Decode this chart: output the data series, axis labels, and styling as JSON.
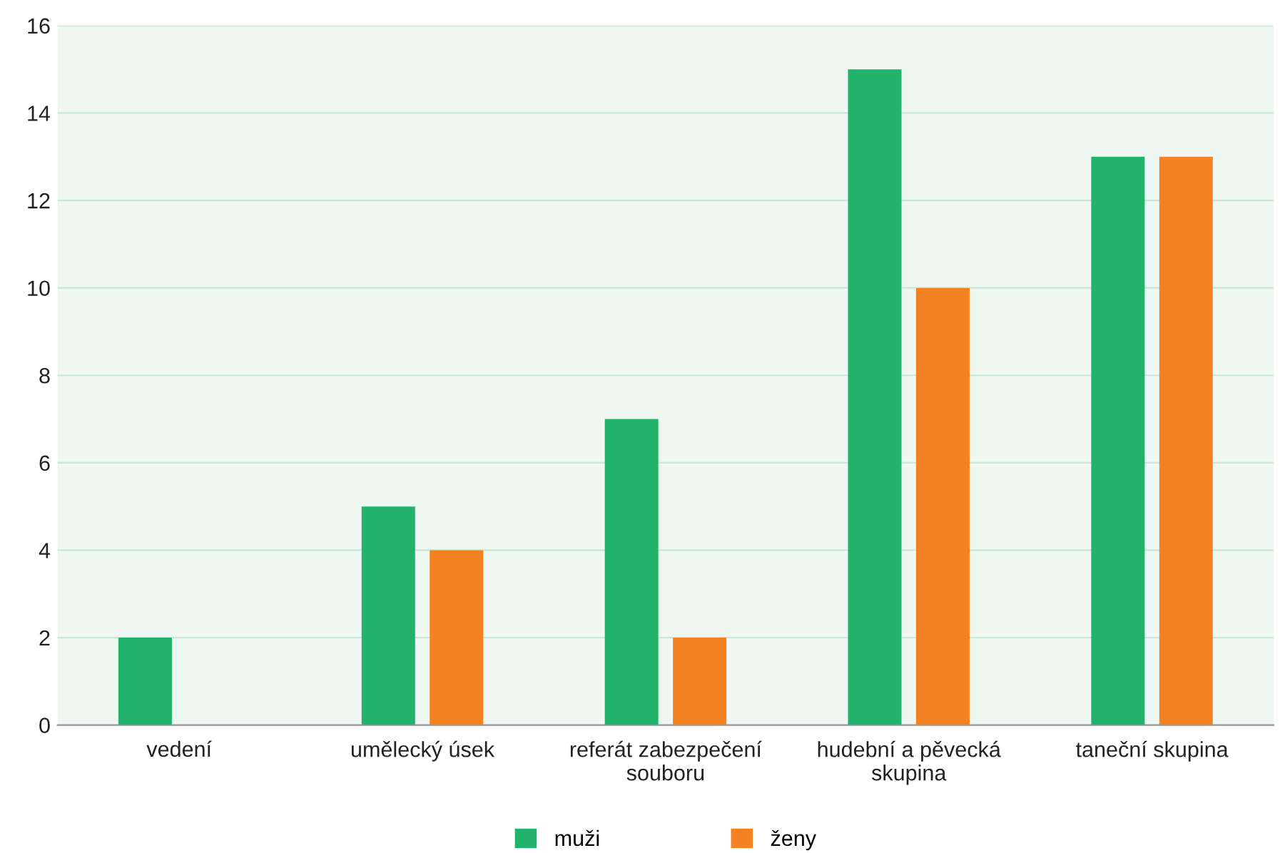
{
  "chart_data": {
    "type": "bar",
    "categories": [
      "vedení",
      "umělecký úsek",
      "referát zabezpečení\nsouboru",
      "hudební a pěvecká\nskupina",
      "taneční skupina"
    ],
    "series": [
      {
        "name": "muži",
        "color": "#21b36b",
        "values": [
          2,
          5,
          7,
          15,
          13
        ]
      },
      {
        "name": "ženy",
        "color": "#f58220",
        "values": [
          0,
          4,
          2,
          10,
          13
        ]
      }
    ],
    "ylim": [
      0,
      16
    ],
    "yticks": [
      0,
      2,
      4,
      6,
      8,
      10,
      12,
      14,
      16
    ],
    "grid": "y",
    "legend": "bottom"
  }
}
